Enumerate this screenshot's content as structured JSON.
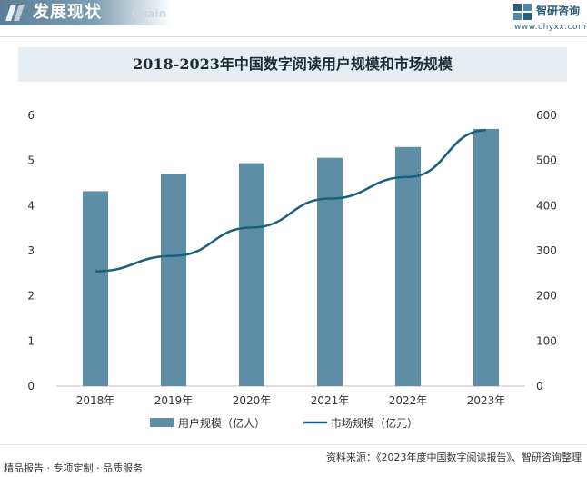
{
  "header": {
    "title": "发展现状",
    "subtitle": "Chain",
    "logo_name": "智研咨询",
    "logo_url": "www.chyxx.com"
  },
  "footer": {
    "left": "精品报告 · 专项定制 · 品质服务",
    "right": "资料来源：《2023年度中国数字阅读报告》、智研咨询整理"
  },
  "colors": {
    "bar": "#5d8ea6",
    "line": "#19607f",
    "title_bg": "#e6eef3"
  },
  "chart_data": {
    "type": "bar",
    "title": "2018-2023年中国数字阅读用户规模和市场规模",
    "categories": [
      "2018年",
      "2019年",
      "2020年",
      "2021年",
      "2022年",
      "2023年"
    ],
    "series": [
      {
        "name": "用户规模（亿人）",
        "type": "bar",
        "axis": "left",
        "values": [
          4.32,
          4.7,
          4.94,
          5.06,
          5.3,
          5.7
        ]
      },
      {
        "name": "市场规模（亿元）",
        "type": "line",
        "axis": "right",
        "values": [
          254.5,
          288.8,
          351.6,
          415.7,
          463.5,
          567.0
        ]
      }
    ],
    "ylim_left": [
      0,
      6
    ],
    "yticks_left": [
      "0",
      "1",
      "2",
      "3",
      "4",
      "5",
      "6"
    ],
    "ylim_right": [
      0,
      600
    ],
    "yticks_right": [
      "0",
      "100",
      "200",
      "300",
      "400",
      "500",
      "600"
    ],
    "grid": false,
    "legend": "bottom"
  }
}
